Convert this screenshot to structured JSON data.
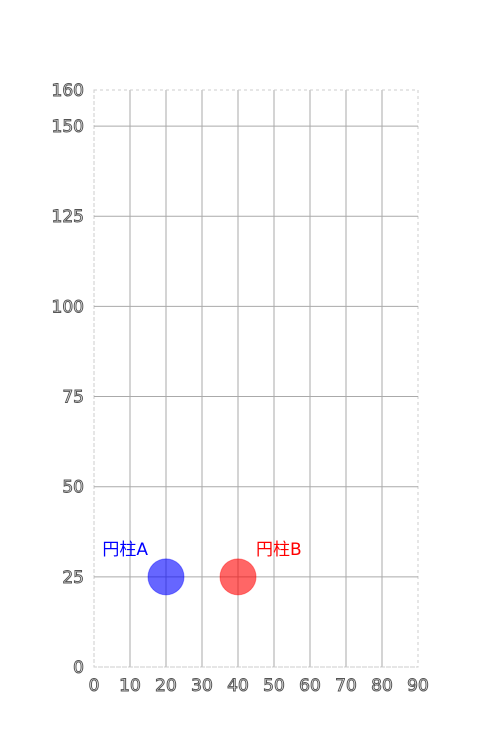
{
  "chart_data": {
    "type": "scatter",
    "title": "",
    "xlabel": "",
    "ylabel": "",
    "xlim": [
      0,
      90
    ],
    "ylim": [
      0,
      160
    ],
    "x_ticks": [
      0,
      10,
      20,
      30,
      40,
      50,
      60,
      70,
      80,
      90
    ],
    "y_ticks": [
      0,
      25,
      50,
      75,
      100,
      125,
      150,
      160
    ],
    "grid": true,
    "legend": "none",
    "points": [
      {
        "label": "円柱A",
        "x": 20,
        "y": 25,
        "color": "#0000ff",
        "label_color": "#0000ff"
      },
      {
        "label": "円柱B",
        "x": 40,
        "y": 25,
        "color": "#ff0000",
        "label_color": "#ff0000"
      }
    ]
  }
}
